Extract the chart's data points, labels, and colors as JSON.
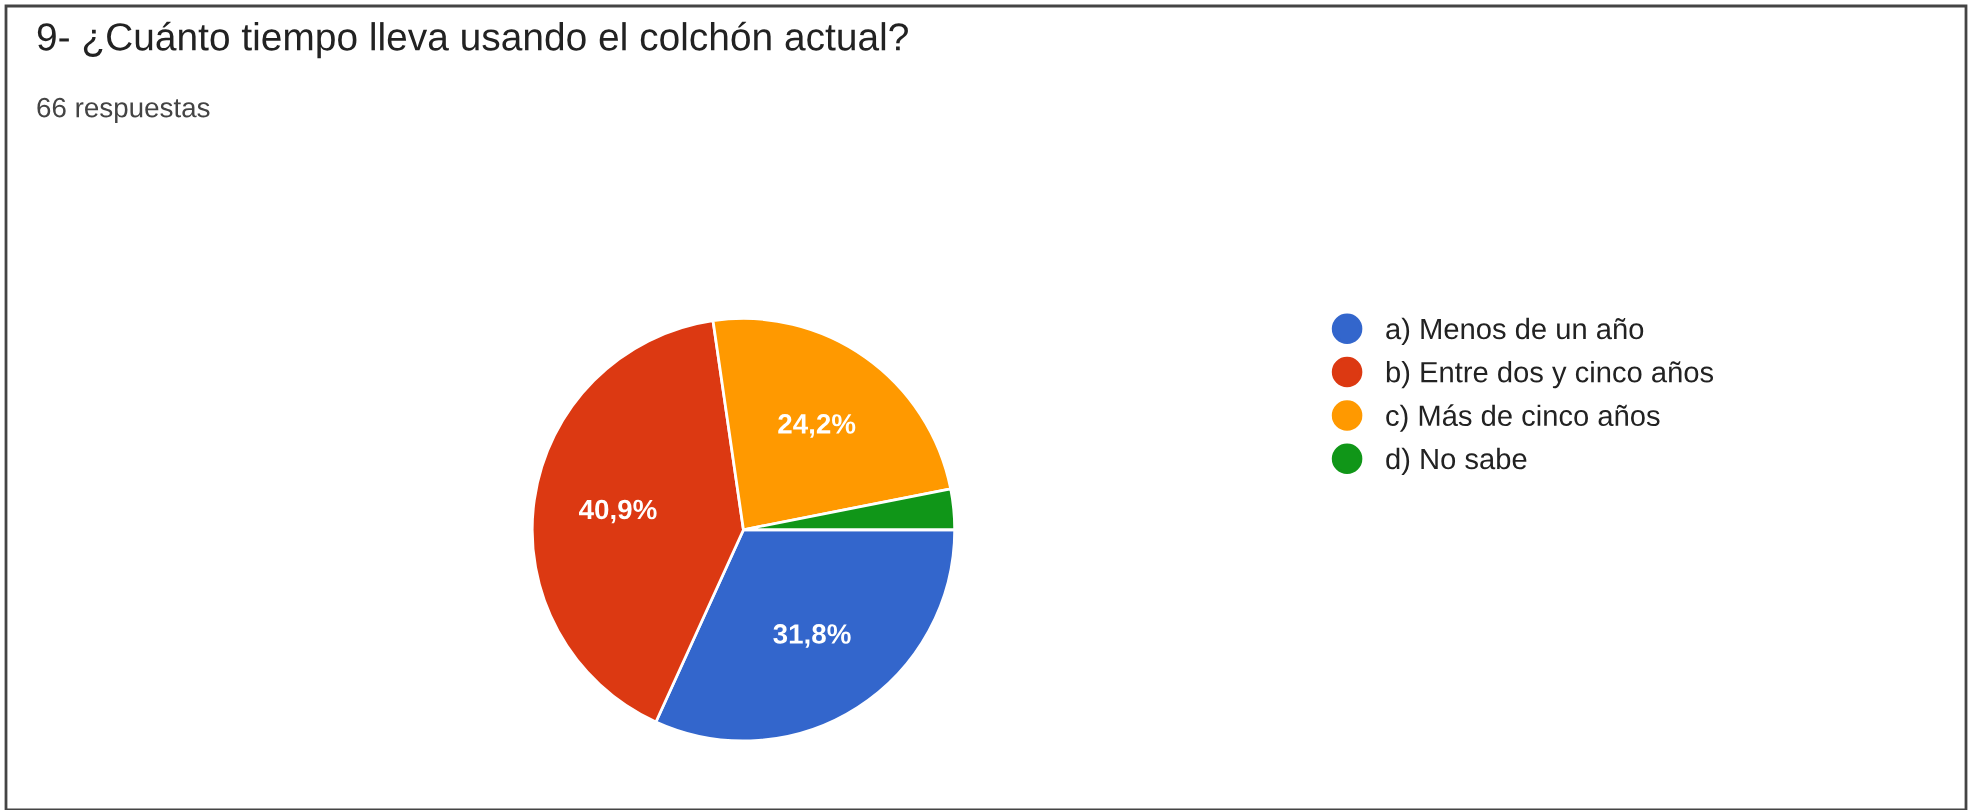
{
  "chart_data": {
    "type": "pie",
    "title": "9- ¿Cuánto tiempo lleva usando el colchón actual?",
    "subtitle": "66 respuestas",
    "categories": [
      "a) Menos de un año",
      "b) Entre dos y cinco años",
      "c) Más de cinco años",
      "d) No sabe"
    ],
    "values": [
      31.8,
      40.9,
      24.2,
      3.1
    ],
    "colors": [
      "#3366cc",
      "#dc3912",
      "#ff9900",
      "#109618"
    ],
    "value_labels": [
      "31,8%",
      "40,9%",
      "24,2%",
      null
    ],
    "legend": "right"
  }
}
